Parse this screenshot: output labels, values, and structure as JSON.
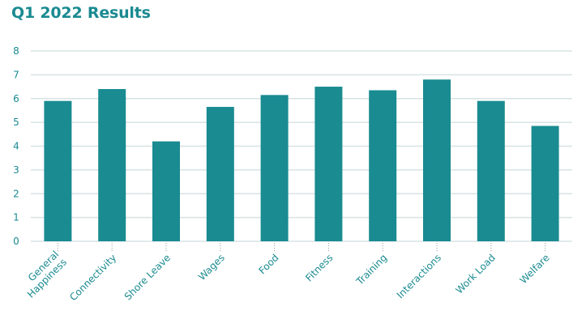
{
  "chart_data": {
    "type": "bar",
    "title": "Q1 2022 Results",
    "categories": [
      [
        "General",
        "Happiness"
      ],
      [
        "Connectivity"
      ],
      [
        "Shore Leave"
      ],
      [
        "Wages"
      ],
      [
        "Food"
      ],
      [
        "Fitness"
      ],
      [
        "Training"
      ],
      [
        "Interactions"
      ],
      [
        "Work Load"
      ],
      [
        "Welfare"
      ]
    ],
    "values": [
      5.9,
      6.4,
      4.2,
      5.65,
      6.15,
      6.5,
      6.35,
      6.8,
      5.9,
      4.85
    ],
    "ylim": [
      0,
      8
    ],
    "yticks": [
      "0",
      "1",
      "2",
      "3",
      "4",
      "5",
      "6",
      "7",
      "8"
    ],
    "xlabel": "",
    "ylabel": "",
    "grid": true,
    "colors": {
      "bar": "#198b91",
      "grid": "#d7e3e4",
      "text": "#1a8a91",
      "tick_mark": "#8a9a9c"
    }
  }
}
